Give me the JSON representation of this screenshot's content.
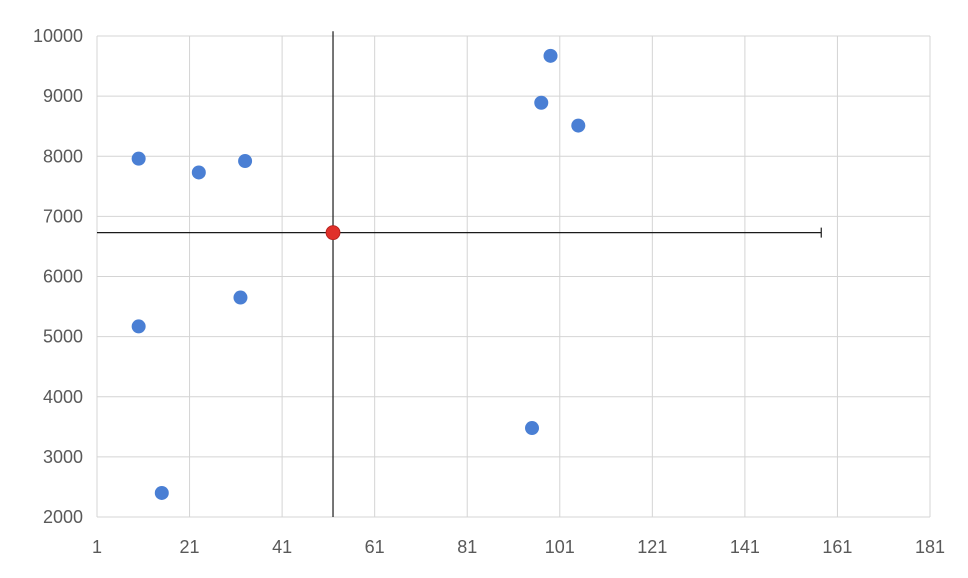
{
  "chart_data": {
    "type": "scatter",
    "title": "",
    "xlabel": "",
    "ylabel": "",
    "xlim": [
      1,
      181
    ],
    "ylim": [
      2000,
      10000
    ],
    "x_ticks": [
      1,
      21,
      41,
      61,
      81,
      101,
      121,
      141,
      161,
      181
    ],
    "y_ticks": [
      2000,
      3000,
      4000,
      5000,
      6000,
      7000,
      8000,
      9000,
      10000
    ],
    "grid": true,
    "legend": "none",
    "series": [
      {
        "color": "#4a7fd4",
        "points": [
          {
            "x": 10,
            "y": 7960
          },
          {
            "x": 23,
            "y": 7730
          },
          {
            "x": 33,
            "y": 7920
          },
          {
            "x": 32,
            "y": 5650
          },
          {
            "x": 10,
            "y": 5170
          },
          {
            "x": 15,
            "y": 2400
          },
          {
            "x": 99,
            "y": 9670
          },
          {
            "x": 97,
            "y": 8890
          },
          {
            "x": 105,
            "y": 8510
          },
          {
            "x": 95,
            "y": 3480
          }
        ]
      }
    ],
    "crosshair": {
      "x": 52,
      "y": 6730,
      "marker_color": "#e0302a",
      "line_color": "#1a1a1a",
      "h_line_x_range": [
        1,
        157.5
      ],
      "v_line_y_range": [
        2000,
        10080
      ]
    },
    "colors": {
      "grid": "#d4d4d4",
      "tick_text": "#595959",
      "background": "#ffffff"
    }
  }
}
